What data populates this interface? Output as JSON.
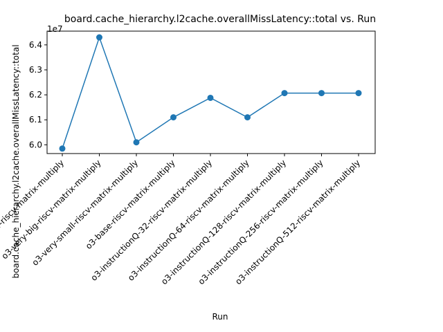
{
  "chart_data": {
    "type": "line",
    "title": "board.cache_hierarchy.l2cache.overallMissLatency::total vs. Run",
    "xlabel": "Run",
    "ylabel": "board.cache_hierarchy.l2cache.overallMissLatency::total",
    "offset_label": "1e7",
    "categories": [
      "inorder-riscv-matrix-multiply",
      "o3-very-big-riscv-matrix-multiply",
      "o3-very-small-riscv-matrix-multiply",
      "o3-base-riscv-matrix-multiply",
      "o3-instructionQ-32-riscv-matrix-multiply",
      "o3-instructionQ-64-riscv-matrix-multiply",
      "o3-instructionQ-128-riscv-matrix-multiply",
      "o3-instructionQ-256-riscv-matrix-multiply",
      "o3-instructionQ-512-riscv-matrix-multiply"
    ],
    "values": [
      59850000,
      64300000,
      60100000,
      61100000,
      61880000,
      61100000,
      62070000,
      62070000,
      62070000
    ],
    "ylim": [
      59650000,
      64550000
    ],
    "yticks": [
      60000000,
      61000000,
      62000000,
      63000000,
      64000000
    ],
    "ytick_labels": [
      "6.0",
      "6.1",
      "6.2",
      "6.3",
      "6.4"
    ],
    "color": "#1f77b4",
    "grid": false
  }
}
